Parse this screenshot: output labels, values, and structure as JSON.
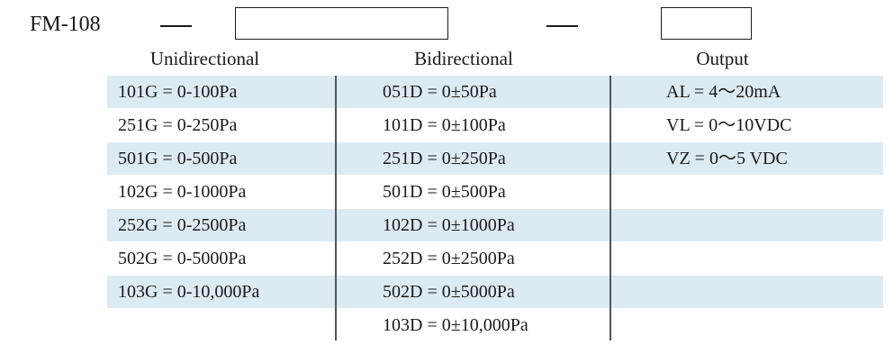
{
  "model_code": "FM-108",
  "headers": {
    "unidirectional": "Unidirectional",
    "bidirectional": "Bidirectional",
    "output": "Output"
  },
  "unidirectional": [
    "101G = 0-100Pa",
    "251G = 0-250Pa",
    "501G = 0-500Pa",
    "102G = 0-1000Pa",
    "252G = 0-2500Pa",
    "502G = 0-5000Pa",
    "103G = 0-10,000Pa"
  ],
  "bidirectional": [
    "051D = 0±50Pa",
    "101D = 0±100Pa",
    "251D = 0±250Pa",
    "501D = 0±500Pa",
    "102D = 0±1000Pa",
    "252D = 0±2500Pa",
    "502D = 0±5000Pa",
    "103D = 0±10,000Pa"
  ],
  "output": [
    "AL = 4～20mA",
    "VL = 0～10VDC",
    "VZ = 0～5 VDC"
  ],
  "colors": {
    "row_band": "#dcebf3",
    "text": "#1a1a1a",
    "divider": "#555555"
  }
}
